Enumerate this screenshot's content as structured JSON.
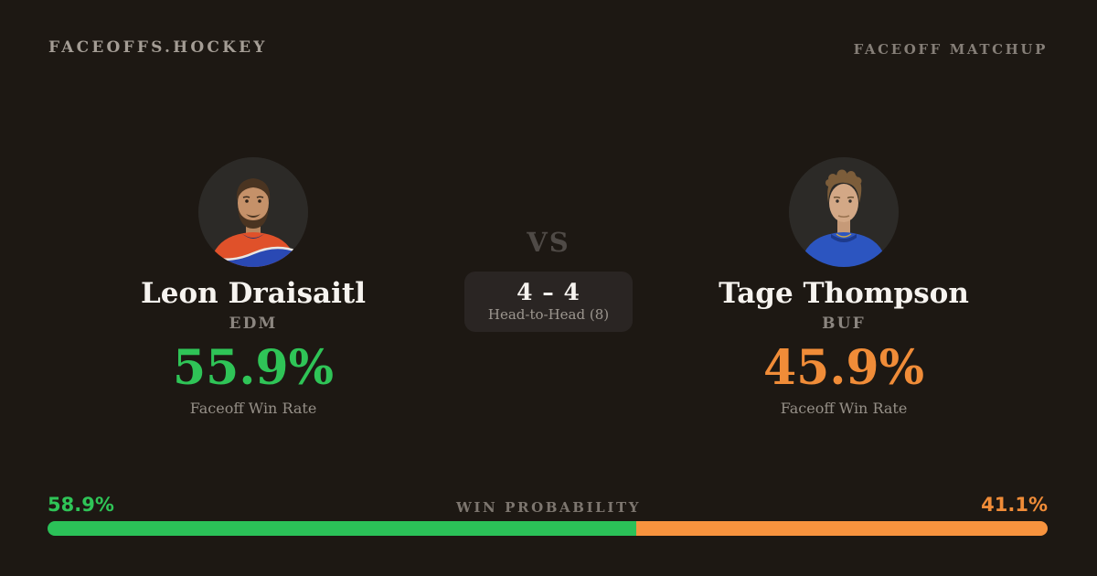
{
  "header": {
    "brand": "FACEOFFS.HOCKEY",
    "page_label": "FACEOFF MATCHUP"
  },
  "players": {
    "left": {
      "name": "Leon Draisaitl",
      "team": "EDM",
      "faceoff_win_rate": "55.9%",
      "stat_label": "Faceoff Win Rate",
      "accent_color": "#2fc457"
    },
    "right": {
      "name": "Tage Thompson",
      "team": "BUF",
      "faceoff_win_rate": "45.9%",
      "stat_label": "Faceoff Win Rate",
      "accent_color": "#f08c38"
    }
  },
  "matchup": {
    "vs_label": "VS",
    "head_to_head_score": "4 – 4",
    "head_to_head_label": "Head-to-Head (8)"
  },
  "win_probability": {
    "label": "WIN PROBABILITY",
    "left_pct": "58.9%",
    "right_pct": "41.1%",
    "left_value": 58.9,
    "right_value": 41.1
  },
  "colors": {
    "background": "#1d1813",
    "green": "#2bc158",
    "orange": "#f7933e",
    "avatar_background": "#2c2a27"
  }
}
